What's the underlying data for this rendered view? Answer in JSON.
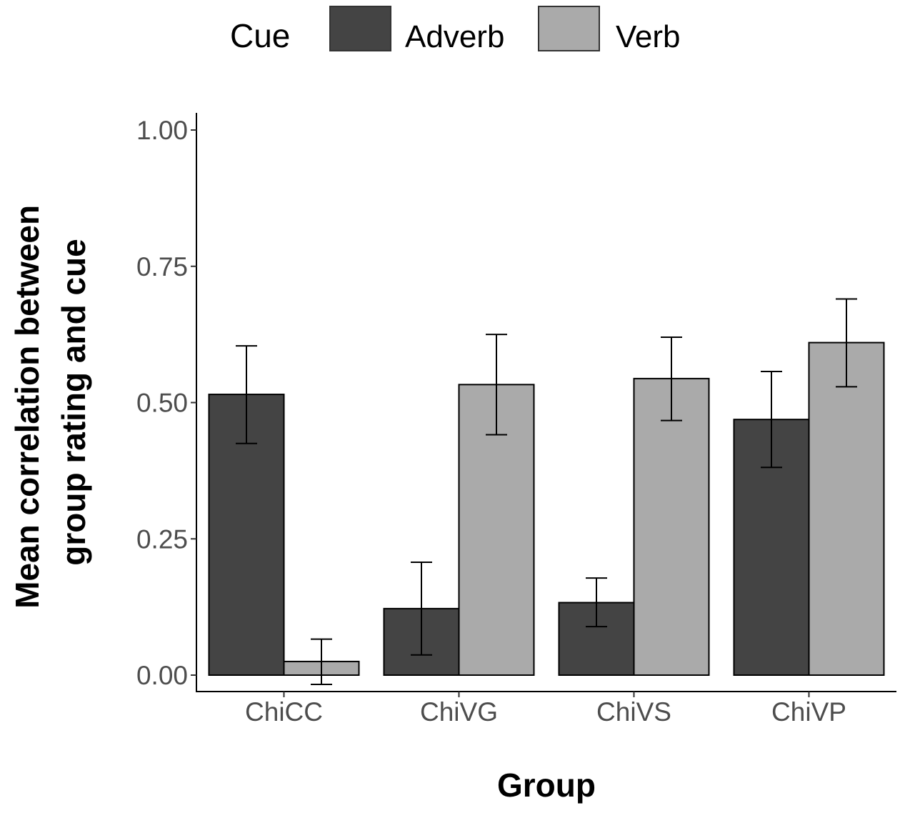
{
  "chart_data": {
    "type": "bar",
    "title": "",
    "xlabel": "Group",
    "ylabel_lines": [
      "Mean correlation between",
      "group rating and cue"
    ],
    "categories": [
      "ChiCC",
      "ChiVG",
      "ChiVS",
      "ChiVP"
    ],
    "series": [
      {
        "name": "Adverb",
        "color": "#444444",
        "values": [
          0.515,
          0.122,
          0.133,
          0.469
        ],
        "error_low": [
          0.425,
          0.037,
          0.089,
          0.381
        ],
        "error_high": [
          0.604,
          0.207,
          0.178,
          0.557
        ]
      },
      {
        "name": "Verb",
        "color": "#aaaaaa",
        "values": [
          0.025,
          0.533,
          0.544,
          0.61
        ],
        "error_low": [
          -0.017,
          0.441,
          0.467,
          0.529
        ],
        "error_high": [
          0.066,
          0.625,
          0.62,
          0.69
        ]
      }
    ],
    "ylim": [
      0,
      1.0
    ],
    "yticks": [
      0.0,
      0.25,
      0.5,
      0.75,
      1.0
    ],
    "ytick_labels": [
      "0.00",
      "0.25",
      "0.50",
      "0.75",
      "1.00"
    ],
    "legend": {
      "title": "Cue",
      "position": "top"
    },
    "grid": false
  }
}
